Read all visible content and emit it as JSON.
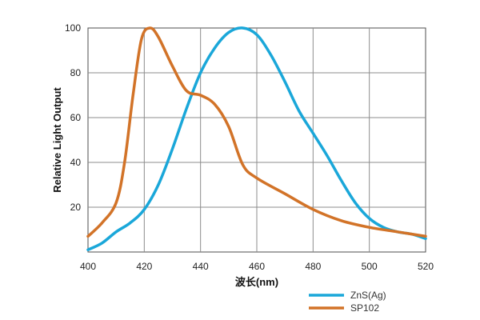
{
  "chart_data": {
    "type": "line",
    "xlabel": "波长(nm)",
    "ylabel": "Relative Light Output",
    "xlim": [
      400,
      520
    ],
    "ylim": [
      0,
      100
    ],
    "x_ticks": [
      400,
      420,
      440,
      460,
      480,
      500,
      520
    ],
    "y_ticks": [
      20,
      40,
      60,
      80,
      100
    ],
    "grid": true,
    "legend_position": "bottom-right",
    "series": [
      {
        "name": "ZnS(Ag)",
        "color": "#1aa7d9",
        "x": [
          400,
          405,
          410,
          415,
          420,
          425,
          430,
          435,
          440,
          445,
          450,
          455,
          460,
          465,
          470,
          475,
          480,
          485,
          490,
          495,
          500,
          505,
          510,
          515,
          520
        ],
        "y": [
          1,
          4,
          9,
          13,
          19,
          30,
          46,
          64,
          80,
          91,
          98,
          100,
          97,
          88,
          76,
          63,
          53,
          43,
          32,
          22,
          15,
          11,
          9,
          8,
          6
        ]
      },
      {
        "name": "SP102",
        "color": "#d27328",
        "x": [
          400,
          405,
          410,
          413,
          416,
          419,
          422,
          425,
          430,
          435,
          440,
          445,
          450,
          455,
          460,
          470,
          480,
          490,
          500,
          510,
          520
        ],
        "y": [
          7,
          13,
          22,
          40,
          70,
          95,
          100,
          96,
          83,
          72,
          70,
          66,
          56,
          39,
          33,
          26,
          19,
          14,
          11,
          9,
          7
        ]
      }
    ]
  }
}
